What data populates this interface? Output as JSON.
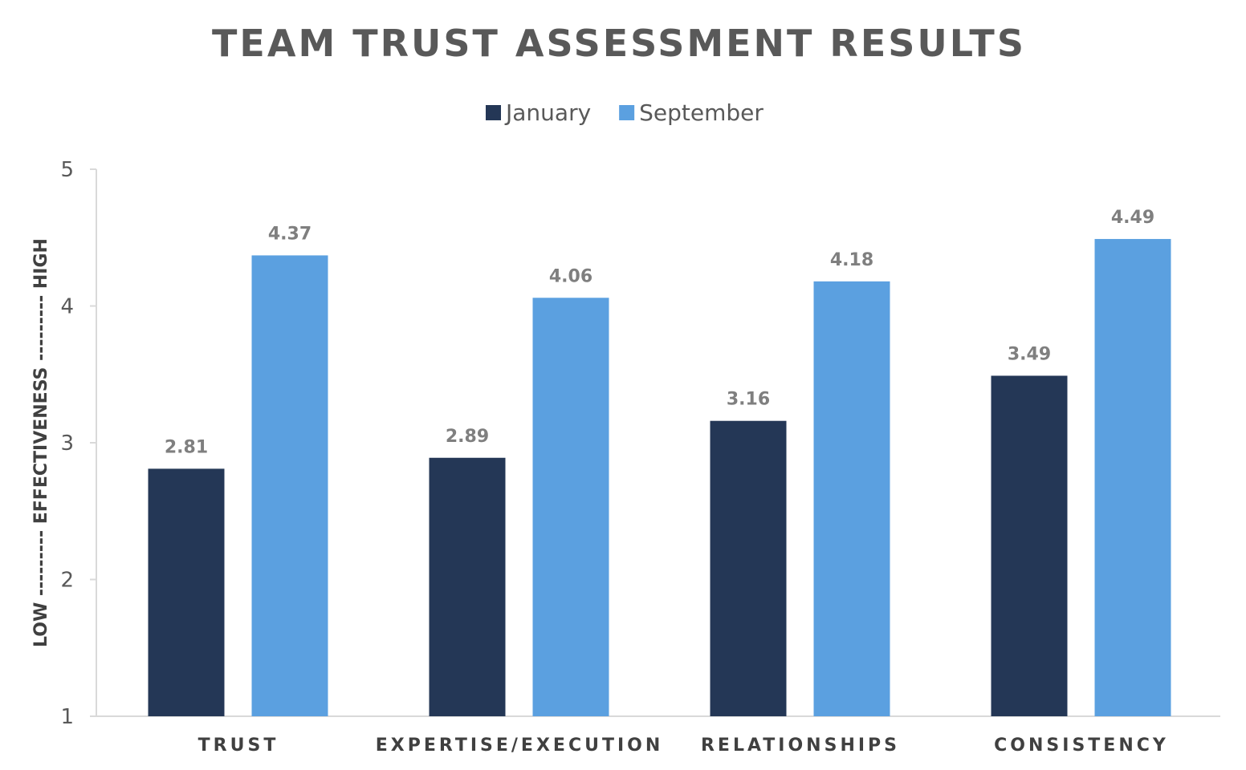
{
  "chart_data": {
    "type": "bar",
    "title": "TEAM TRUST ASSESSMENT RESULTS",
    "xlabel": "",
    "ylabel": "LOW --------- EFFECTIVENESS --------- HIGH",
    "ylim": [
      1,
      5
    ],
    "yticks": [
      "1",
      "2",
      "3",
      "4",
      "5"
    ],
    "grid": false,
    "legend_position": "top",
    "categories": [
      "TRUST",
      "EXPERTISE/EXECUTION",
      "RELATIONSHIPS",
      "CONSISTENCY"
    ],
    "series": [
      {
        "name": "January",
        "color": "#243756",
        "values": [
          2.81,
          2.89,
          3.16,
          3.49
        ]
      },
      {
        "name": "September",
        "color": "#5BA0E0",
        "values": [
          4.37,
          4.06,
          4.18,
          4.49
        ]
      }
    ]
  }
}
